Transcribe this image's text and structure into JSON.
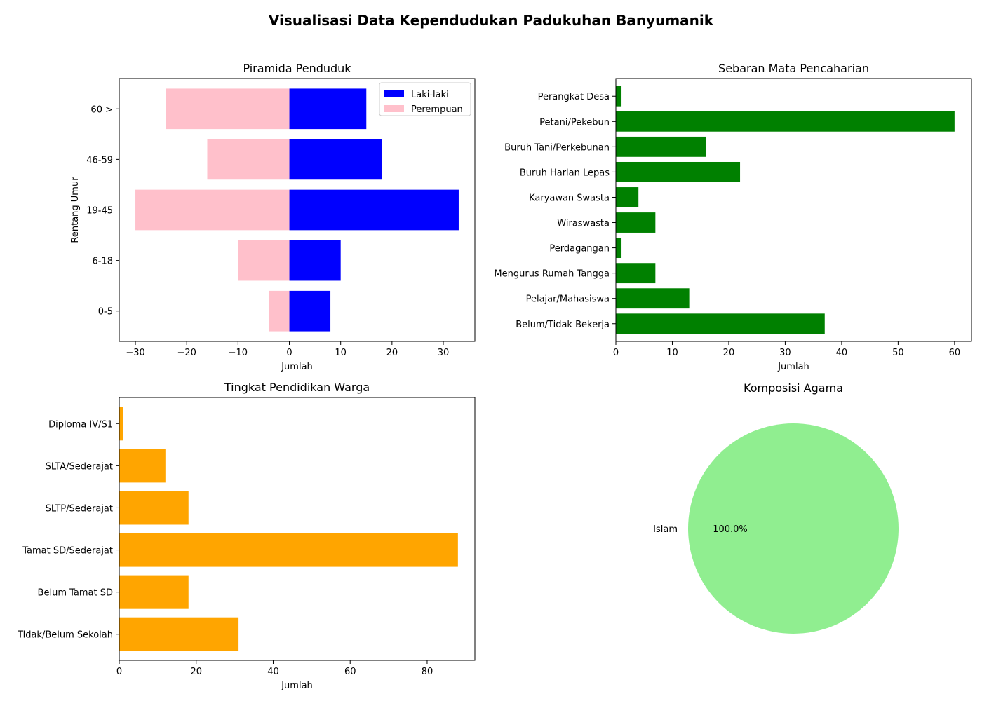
{
  "figure_title": "Visualisasi Data Kependudukan Padukuhan Banyumanik",
  "chart_data": [
    {
      "id": "pyramid",
      "type": "bar",
      "orientation": "horizontal",
      "title": "Piramida Penduduk",
      "xlabel": "Jumlah",
      "ylabel": "Rentang Umur",
      "categories": [
        "0-5",
        "6-18",
        "19-45",
        "46-59",
        "60 >"
      ],
      "series": [
        {
          "name": "Laki-laki",
          "color": "#0000ff",
          "values": [
            8,
            10,
            33,
            18,
            15
          ]
        },
        {
          "name": "Perempuan",
          "color": "#ffc0cb",
          "values": [
            -4,
            -10,
            -30,
            -16,
            -24
          ]
        }
      ],
      "xlim": [
        -33.15,
        36.15
      ],
      "xticks": [
        -30,
        -20,
        -10,
        0,
        10,
        20,
        30
      ],
      "xtick_labels": [
        "−30",
        "−20",
        "−10",
        "0",
        "10",
        "20",
        "30"
      ],
      "legend": "top-right",
      "grid": false
    },
    {
      "id": "jobs",
      "type": "bar",
      "orientation": "horizontal",
      "title": "Sebaran Mata Pencaharian",
      "xlabel": "Jumlah",
      "ylabel": "",
      "color": "#008000",
      "categories": [
        "Belum/Tidak Bekerja",
        "Pelajar/Mahasiswa",
        "Mengurus Rumah Tangga",
        "Perdagangan",
        "Wiraswasta",
        "Karyawan Swasta",
        "Buruh Harian Lepas",
        "Buruh Tani/Perkebunan",
        "Petani/Pekebun",
        "Perangkat Desa"
      ],
      "values": [
        37,
        13,
        7,
        1,
        7,
        4,
        22,
        16,
        60,
        1
      ],
      "xlim": [
        0,
        63
      ],
      "xticks": [
        0,
        10,
        20,
        30,
        40,
        50,
        60
      ],
      "xtick_labels": [
        "0",
        "10",
        "20",
        "30",
        "40",
        "50",
        "60"
      ],
      "grid": false
    },
    {
      "id": "education",
      "type": "bar",
      "orientation": "horizontal",
      "title": "Tingkat Pendidikan Warga",
      "xlabel": "Jumlah",
      "ylabel": "",
      "color": "#ffa500",
      "categories": [
        "Tidak/Belum Sekolah",
        "Belum Tamat SD",
        "Tamat SD/Sederajat",
        "SLTP/Sederajat",
        "SLTA/Sederajat",
        "Diploma IV/S1"
      ],
      "values": [
        31,
        18,
        88,
        18,
        12,
        1
      ],
      "xlim": [
        0,
        92.4
      ],
      "xticks": [
        0,
        20,
        40,
        60,
        80
      ],
      "xtick_labels": [
        "0",
        "20",
        "40",
        "60",
        "80"
      ],
      "grid": false
    },
    {
      "id": "religion",
      "type": "pie",
      "title": "Komposisi Agama",
      "labels": [
        "Islam"
      ],
      "values": [
        100
      ],
      "pct_labels": [
        "100.0%"
      ],
      "colors": [
        "#90ee90"
      ]
    }
  ]
}
